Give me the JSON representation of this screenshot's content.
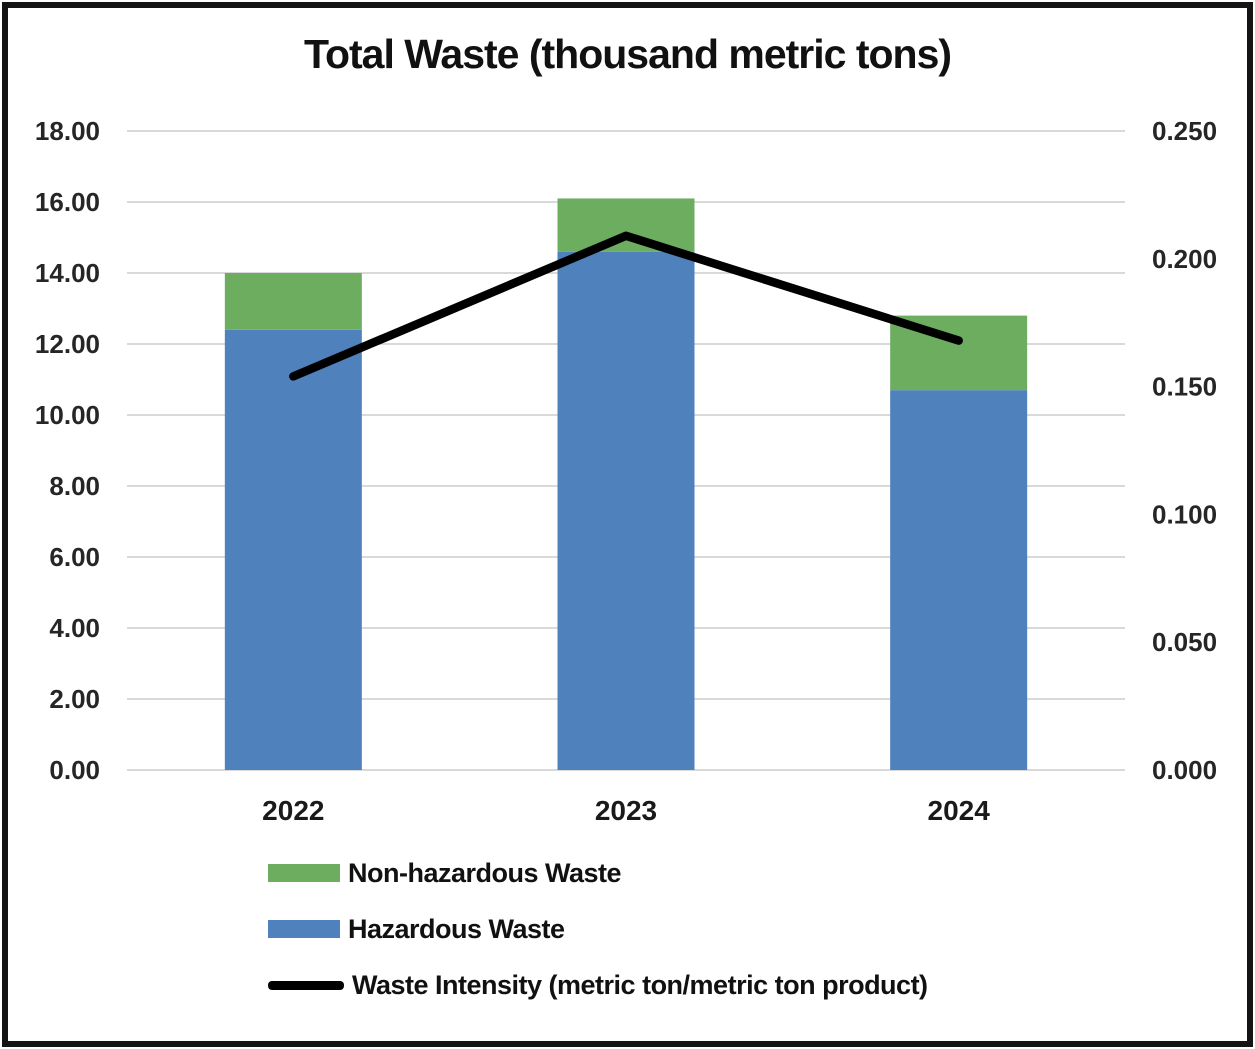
{
  "title": "Total Waste (thousand metric tons)",
  "colors": {
    "hazardous_blue": "#4f81bd",
    "non_hazardous_green": "#6cad60",
    "intensity_line": "#000000",
    "gridline": "#d9d9d9",
    "axis_text": "#262626",
    "frame_border": "#141414"
  },
  "chart_data": {
    "type": "bar",
    "subtype": "stacked-bars-with-line-overlay",
    "title": "Total Waste (thousand metric tons)",
    "categories": [
      "2022",
      "2023",
      "2024"
    ],
    "series": [
      {
        "name": "Hazardous Waste",
        "type": "bar",
        "axis": "left",
        "color": "#4f81bd",
        "values": [
          12.4,
          14.6,
          10.7
        ]
      },
      {
        "name": "Non-hazardous Waste",
        "type": "bar",
        "axis": "left",
        "color": "#6cad60",
        "values": [
          1.6,
          1.5,
          2.1
        ]
      },
      {
        "name": "Waste Intensity (metric ton/metric ton product)",
        "type": "line",
        "axis": "right",
        "color": "#000000",
        "values": [
          0.154,
          0.209,
          0.168
        ]
      }
    ],
    "stacked_totals": [
      14.0,
      16.1,
      12.8
    ],
    "left_axis": {
      "min": 0,
      "max": 18,
      "step": 2,
      "tick_labels": [
        "18.00",
        "16.00",
        "14.00",
        "12.00",
        "10.00",
        "8.00",
        "6.00",
        "4.00",
        "2.00",
        "0.00"
      ]
    },
    "right_axis": {
      "min": 0,
      "max": 0.25,
      "step": 0.05,
      "tick_labels": [
        "0.250",
        "0.200",
        "0.150",
        "0.100",
        "0.050",
        "0.000"
      ]
    },
    "grid": "horizontal-only",
    "legend_position": "bottom-left"
  },
  "legend": {
    "items": [
      {
        "label": "Non-hazardous Waste",
        "swatch": "rect",
        "color": "#6cad60"
      },
      {
        "label": "Hazardous Waste",
        "swatch": "rect",
        "color": "#4f81bd"
      },
      {
        "label": "Waste Intensity (metric ton/metric ton product)",
        "swatch": "line",
        "color": "#000000"
      }
    ]
  }
}
